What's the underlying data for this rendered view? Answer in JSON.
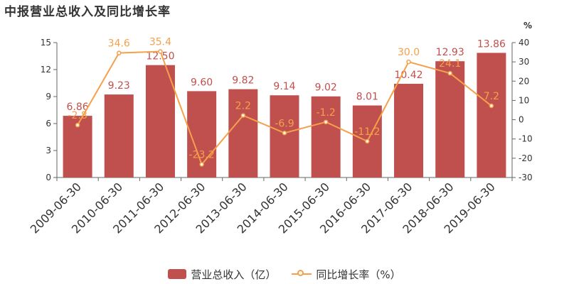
{
  "title": "中报营业总收入及同比增长率",
  "colors": {
    "bar": "#c0504d",
    "line": "#f5a04a",
    "text": "#333333"
  },
  "chart_data": {
    "type": "bar",
    "categories": [
      "2009-06-30",
      "2010-06-30",
      "2011-06-30",
      "2012-06-30",
      "2013-06-30",
      "2014-06-30",
      "2015-06-30",
      "2016-06-30",
      "2017-06-30",
      "2018-06-30",
      "2019-06-30"
    ],
    "series": [
      {
        "name": "营业总收入（亿）",
        "type": "bar",
        "axis": "left",
        "values": [
          6.86,
          9.23,
          12.5,
          9.6,
          9.82,
          9.14,
          9.02,
          8.01,
          10.42,
          12.93,
          13.86
        ],
        "labels": [
          "6.86",
          "9.23",
          "12.50",
          "9.60",
          "9.82",
          "9.14",
          "9.02",
          "8.01",
          "10.42",
          "12.93",
          "13.86"
        ]
      },
      {
        "name": "同比增长率（%）",
        "type": "line",
        "axis": "right",
        "values": [
          -2.8,
          34.6,
          35.4,
          -23.2,
          2.2,
          -6.9,
          -1.2,
          -11.2,
          30.0,
          24.1,
          7.2
        ],
        "labels": [
          "-2.8",
          "34.6",
          "35.4",
          "-23.2",
          "2.2",
          "-6.9",
          "-1.2",
          "-11.2",
          "30.0",
          "24.1",
          "7.2"
        ]
      }
    ],
    "y_left": {
      "ylim": [
        0,
        15
      ],
      "ticks": [
        "0",
        "3",
        "6",
        "9",
        "12",
        "15"
      ]
    },
    "y_right": {
      "ylim": [
        -30,
        40
      ],
      "ticks": [
        "-30",
        "-20",
        "-10",
        "0",
        "10",
        "20",
        "30",
        "40"
      ],
      "unit": "%"
    },
    "grid": false,
    "legend": "bottom-center"
  }
}
